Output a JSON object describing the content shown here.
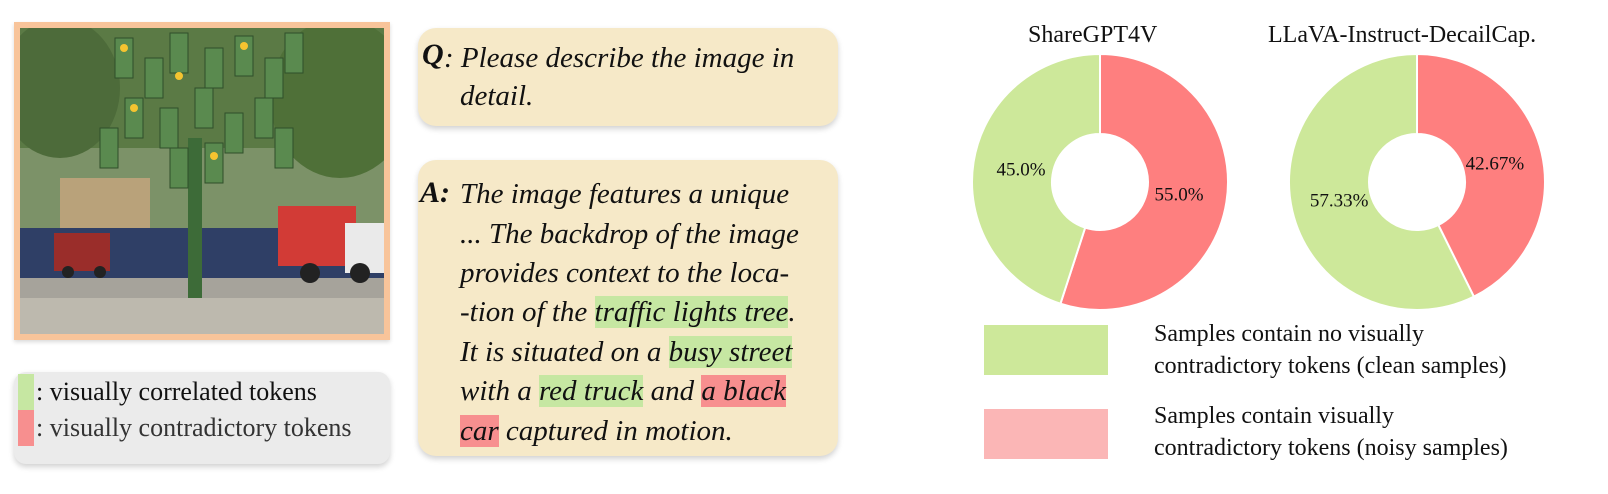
{
  "colors": {
    "correlated": "#c6e7a2",
    "contradictory": "#f78f8f",
    "clean_pie": "#cde89a",
    "noisy_pie": "#fe7f7f",
    "clean_legend": "#cde89a",
    "noisy_legend": "#fbb6b6",
    "bubble": "#f6e9c8",
    "photo_border": "#f8c49a"
  },
  "legend": {
    "correlated_label": ": visually correlated tokens",
    "contradictory_label": ": visually contradictory tokens"
  },
  "question": {
    "label": "Q",
    "line1": ": Please describe the image in",
    "line2": "detail."
  },
  "answer": {
    "label": "A:",
    "line1": "The  image features a unique",
    "line2": "... The backdrop of the image",
    "line3": "provides context to the loca-",
    "line4_pre": "-tion of the ",
    "line4_hl": "traffic lights tree",
    "line4_post": ".",
    "line5_pre": "It is situated on a ",
    "line5_hl": "busy street",
    "line6_pre": "with a ",
    "line6_hl1": "red truck",
    "line6_mid": " and ",
    "line6_hl2": "a black",
    "line7_hl": "car",
    "line7_post": " captured in motion."
  },
  "chart_data": [
    {
      "type": "pie",
      "title": "ShareGPT4V",
      "categories": [
        "Samples contain no visually contradictory tokens (clean samples)",
        "Samples contain visually contradictory tokens (noisy samples)"
      ],
      "values": [
        45.0,
        55.0
      ],
      "labels": [
        "45.0%",
        "55.0%"
      ],
      "donut": true
    },
    {
      "type": "pie",
      "title": "LLaVA-Instruct-DecailCap.",
      "categories": [
        "Samples contain no visually contradictory tokens (clean samples)",
        "Samples contain visually contradictory tokens (noisy samples)"
      ],
      "values": [
        57.33,
        42.67
      ],
      "labels": [
        "57.33%",
        "42.67%"
      ],
      "donut": true
    }
  ],
  "pie_legend": {
    "clean_line1": "Samples contain no visually",
    "clean_line2": "contradictory tokens (clean samples)",
    "noisy_line1": "Samples contain visually",
    "noisy_line2": "contradictory tokens (noisy samples)"
  }
}
